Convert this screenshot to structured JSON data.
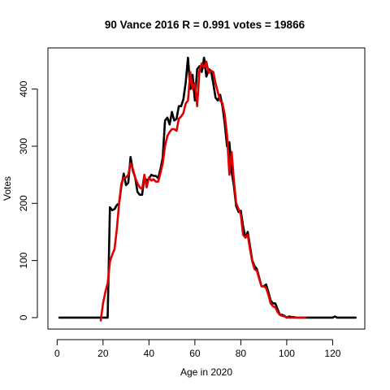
{
  "chart_data": {
    "type": "line",
    "title": "90 Vance 2016 R = 0.991 votes = 19866",
    "xlabel": "Age in 2020",
    "ylabel": "Votes",
    "xlim": [
      -4,
      134
    ],
    "ylim": [
      -20,
      472
    ],
    "xticks": [
      "0",
      "20",
      "40",
      "60",
      "80",
      "100",
      "120"
    ],
    "xtick_values": [
      0,
      20,
      40,
      60,
      80,
      100,
      120
    ],
    "yticks": [
      "0",
      "100",
      "200",
      "300",
      "400"
    ],
    "ytick_values": [
      0,
      100,
      200,
      300,
      400
    ],
    "series": [
      {
        "color": "#000000",
        "x": [
          1,
          2,
          3,
          4,
          5,
          6,
          7,
          8,
          9,
          10,
          11,
          12,
          13,
          14,
          15,
          16,
          17,
          18,
          19,
          20,
          21,
          22,
          23,
          24,
          25,
          26,
          27,
          28,
          29,
          30,
          31,
          32,
          33,
          34,
          35,
          36,
          37,
          38,
          39,
          40,
          41,
          42,
          43,
          44,
          45,
          46,
          47,
          48,
          49,
          50,
          51,
          52,
          53,
          54,
          55,
          56,
          57,
          58,
          59,
          60,
          61,
          62,
          63,
          64,
          65,
          66,
          67,
          68,
          69,
          70,
          71,
          72,
          73,
          74,
          75,
          76,
          77,
          78,
          79,
          80,
          81,
          82,
          83,
          84,
          85,
          86,
          87,
          88,
          89,
          90,
          91,
          92,
          93,
          94,
          95,
          96,
          97,
          98,
          99,
          100,
          101,
          102,
          103,
          104,
          105,
          106,
          107,
          108,
          109,
          110,
          111,
          112,
          113,
          114,
          115,
          116,
          117,
          118,
          119,
          120,
          121,
          122,
          123,
          124,
          125,
          126,
          127,
          128,
          129,
          130
        ],
        "y": [
          0,
          0,
          0,
          0,
          0,
          0,
          0,
          0,
          0,
          0,
          0,
          0,
          0,
          0,
          0,
          0,
          0,
          0,
          0,
          0,
          0,
          0,
          193,
          188,
          190,
          197,
          200,
          230,
          252,
          232,
          236,
          281,
          257,
          245,
          220,
          215,
          215,
          245,
          240,
          243,
          250,
          248,
          248,
          244,
          260,
          280,
          345,
          350,
          338,
          360,
          345,
          348,
          370,
          370,
          382,
          412,
          455,
          400,
          425,
          380,
          435,
          440,
          430,
          455,
          422,
          435,
          432,
          410,
          385,
          380,
          390,
          370,
          340,
          300,
          307,
          255,
          230,
          195,
          185,
          187,
          160,
          140,
          150,
          125,
          100,
          90,
          85,
          70,
          55,
          55,
          58,
          45,
          30,
          25,
          25,
          15,
          5,
          5,
          3,
          0,
          2,
          1,
          1,
          0,
          0,
          0,
          0,
          0,
          0,
          0,
          0,
          0,
          0,
          0,
          0,
          0,
          0,
          0,
          0,
          0,
          2,
          0,
          0,
          0,
          0,
          0,
          0,
          0,
          0,
          0
        ]
      },
      {
        "color": "#e00000",
        "x": [
          19,
          20,
          21,
          22,
          23,
          24,
          25,
          26,
          27,
          28,
          29,
          30,
          31,
          32,
          33,
          34,
          35,
          36,
          37,
          38,
          39,
          40,
          41,
          42,
          43,
          44,
          45,
          46,
          47,
          48,
          49,
          50,
          51,
          52,
          53,
          54,
          55,
          56,
          57,
          58,
          59,
          60,
          61,
          62,
          63,
          64,
          65,
          66,
          67,
          68,
          69,
          70,
          71,
          72,
          73,
          74,
          75,
          76,
          77,
          78,
          79,
          80,
          81,
          82,
          83,
          84,
          85,
          86,
          87,
          88,
          89,
          90,
          91,
          92,
          93,
          94,
          95,
          96,
          97,
          98,
          99,
          100,
          101,
          102,
          103,
          104,
          105,
          106,
          107,
          108
        ],
        "y": [
          -5,
          25,
          45,
          60,
          98,
          110,
          120,
          155,
          200,
          235,
          245,
          245,
          250,
          270,
          260,
          245,
          235,
          228,
          225,
          250,
          228,
          245,
          240,
          242,
          238,
          238,
          253,
          270,
          300,
          318,
          325,
          330,
          330,
          327,
          348,
          352,
          358,
          375,
          380,
          430,
          400,
          410,
          370,
          432,
          445,
          437,
          448,
          428,
          432,
          430,
          410,
          395,
          380,
          375,
          355,
          320,
          250,
          290,
          240,
          200,
          190,
          180,
          145,
          140,
          145,
          120,
          98,
          85,
          82,
          68,
          55,
          55,
          52,
          40,
          25,
          20,
          18,
          10,
          5,
          3,
          2,
          1,
          0,
          0,
          0,
          0,
          0,
          0,
          0,
          0
        ]
      }
    ]
  }
}
